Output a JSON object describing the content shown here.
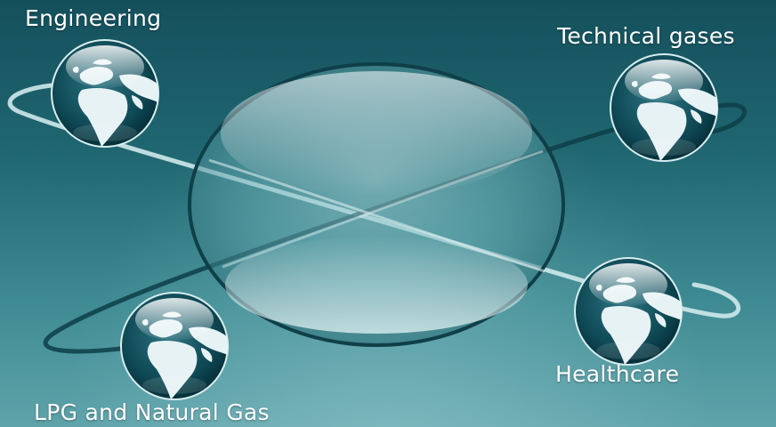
{
  "labels": {
    "engineering": "Engineering",
    "technical_gases": "Technical gases",
    "healthcare": "Healthcare",
    "lpg": "LPG and Natural Gas"
  },
  "colors": {
    "background_top": "#14505c",
    "background_bottom": "#5fa3aa",
    "orbit_stroke": "#cfe9ec",
    "globe_ocean": "#0e4550",
    "globe_land": "#e8f3f5"
  },
  "icons": {
    "globe": "globe-icon",
    "center_lens": "glass-sphere"
  }
}
